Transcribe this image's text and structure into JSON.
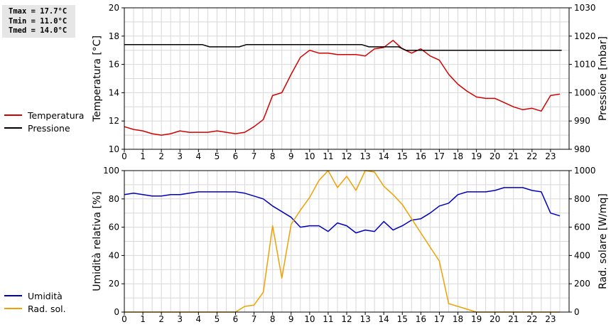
{
  "stats": {
    "tmax": "Tmax = 17.7°C",
    "tmin": "Tmin = 11.0°C",
    "tmed": "Tmed = 14.0°C"
  },
  "colors": {
    "temperature": "#d40000",
    "pressure": "#000000",
    "humidity": "#0000c0",
    "radiation": "#f0a000",
    "grid": "#d8d8d8"
  },
  "legend_top": [
    {
      "label": "Temperatura",
      "color": "#d40000"
    },
    {
      "label": "Pressione",
      "color": "#000000"
    }
  ],
  "legend_bottom": [
    {
      "label": "Umidità",
      "color": "#0000c0"
    },
    {
      "label": "Rad. sol.",
      "color": "#f0a000"
    }
  ],
  "chart_data": [
    {
      "type": "line",
      "xlim": [
        0,
        24
      ],
      "xticks": [
        0,
        1,
        2,
        3,
        4,
        5,
        6,
        7,
        8,
        9,
        10,
        11,
        12,
        13,
        14,
        15,
        16,
        17,
        18,
        19,
        20,
        21,
        22,
        23
      ],
      "ylabel": "Temperatura [°C]",
      "ylim": [
        10,
        20
      ],
      "yticks": [
        10,
        12,
        14,
        16,
        18,
        20
      ],
      "y2label": "Pressione [mbar]",
      "y2lim": [
        980,
        1030
      ],
      "y2ticks": [
        980,
        990,
        1000,
        1010,
        1020,
        1030
      ],
      "grid": true,
      "series": [
        {
          "name": "Temperatura",
          "axis": "left",
          "x": [
            0,
            0.5,
            1,
            1.5,
            2,
            2.5,
            3,
            3.5,
            4,
            4.5,
            5,
            5.5,
            6,
            6.5,
            7,
            7.5,
            8,
            8.5,
            9,
            9.5,
            10,
            10.5,
            11,
            11.5,
            12,
            12.5,
            13,
            13.5,
            14,
            14.5,
            15,
            15.5,
            16,
            16.5,
            17,
            17.5,
            18,
            18.5,
            19,
            19.5,
            20,
            20.5,
            21,
            21.5,
            22,
            22.5,
            23,
            23.5
          ],
          "y": [
            11.6,
            11.4,
            11.3,
            11.1,
            11.0,
            11.1,
            11.3,
            11.2,
            11.2,
            11.2,
            11.3,
            11.2,
            11.1,
            11.2,
            11.6,
            12.1,
            13.8,
            14.0,
            15.3,
            16.5,
            17.0,
            16.8,
            16.8,
            16.7,
            16.7,
            16.7,
            16.6,
            17.1,
            17.2,
            17.7,
            17.1,
            16.8,
            17.1,
            16.6,
            16.3,
            15.3,
            14.6,
            14.1,
            13.7,
            13.6,
            13.6,
            13.3,
            13.0,
            12.8,
            12.9,
            12.7,
            13.8,
            13.9
          ]
        },
        {
          "name": "Pressione",
          "axis": "right",
          "x": [
            0,
            4.2,
            4.6,
            6.2,
            6.6,
            12.8,
            13.2,
            14.8,
            15.2,
            23.6
          ],
          "y": [
            1017,
            1017,
            1016.2,
            1016.2,
            1017,
            1017,
            1016.2,
            1016.2,
            1015,
            1015
          ]
        }
      ]
    },
    {
      "type": "line",
      "xlim": [
        0,
        24
      ],
      "xticks": [
        0,
        1,
        2,
        3,
        4,
        5,
        6,
        7,
        8,
        9,
        10,
        11,
        12,
        13,
        14,
        15,
        16,
        17,
        18,
        19,
        20,
        21,
        22,
        23
      ],
      "ylabel": "Umidità relativa [%]",
      "ylim": [
        0,
        100
      ],
      "yticks": [
        0,
        20,
        40,
        60,
        80,
        100
      ],
      "y2label": "Rad. solare [W/mq]",
      "y2lim": [
        0,
        1000
      ],
      "y2ticks": [
        0,
        200,
        400,
        600,
        800,
        1000
      ],
      "grid": true,
      "series": [
        {
          "name": "Umidità",
          "axis": "left",
          "x": [
            0,
            0.5,
            1,
            1.5,
            2,
            2.5,
            3,
            3.5,
            4,
            4.5,
            5,
            5.5,
            6,
            6.5,
            7,
            7.5,
            8,
            8.5,
            9,
            9.5,
            10,
            10.5,
            11,
            11.5,
            12,
            12.5,
            13,
            13.5,
            14,
            14.5,
            15,
            15.5,
            16,
            16.5,
            17,
            17.5,
            18,
            18.5,
            19,
            19.5,
            20,
            20.5,
            21,
            21.5,
            22,
            22.5,
            23,
            23.5
          ],
          "y": [
            83,
            84,
            83,
            82,
            82,
            83,
            83,
            84,
            85,
            85,
            85,
            85,
            85,
            84,
            82,
            80,
            75,
            71,
            67,
            60,
            61,
            61,
            57,
            63,
            61,
            56,
            58,
            57,
            64,
            58,
            61,
            65,
            66,
            70,
            75,
            77,
            83,
            85,
            85,
            85,
            86,
            88,
            88,
            88,
            86,
            85,
            70,
            68
          ]
        },
        {
          "name": "Rad. sol.",
          "axis": "right",
          "x": [
            0,
            6,
            6.5,
            7,
            7.5,
            8,
            8.5,
            9,
            9.5,
            10,
            10.5,
            11,
            11.5,
            12,
            12.5,
            13,
            13.5,
            14,
            14.5,
            15,
            15.5,
            16,
            16.5,
            17,
            17.5,
            18,
            18.5,
            19,
            19.5,
            20,
            23.5
          ],
          "y": [
            0,
            0,
            40,
            50,
            140,
            610,
            240,
            620,
            720,
            810,
            930,
            1000,
            880,
            960,
            860,
            1000,
            990,
            890,
            830,
            760,
            660,
            560,
            460,
            360,
            60,
            40,
            20,
            0,
            0,
            0,
            0
          ]
        }
      ]
    }
  ]
}
